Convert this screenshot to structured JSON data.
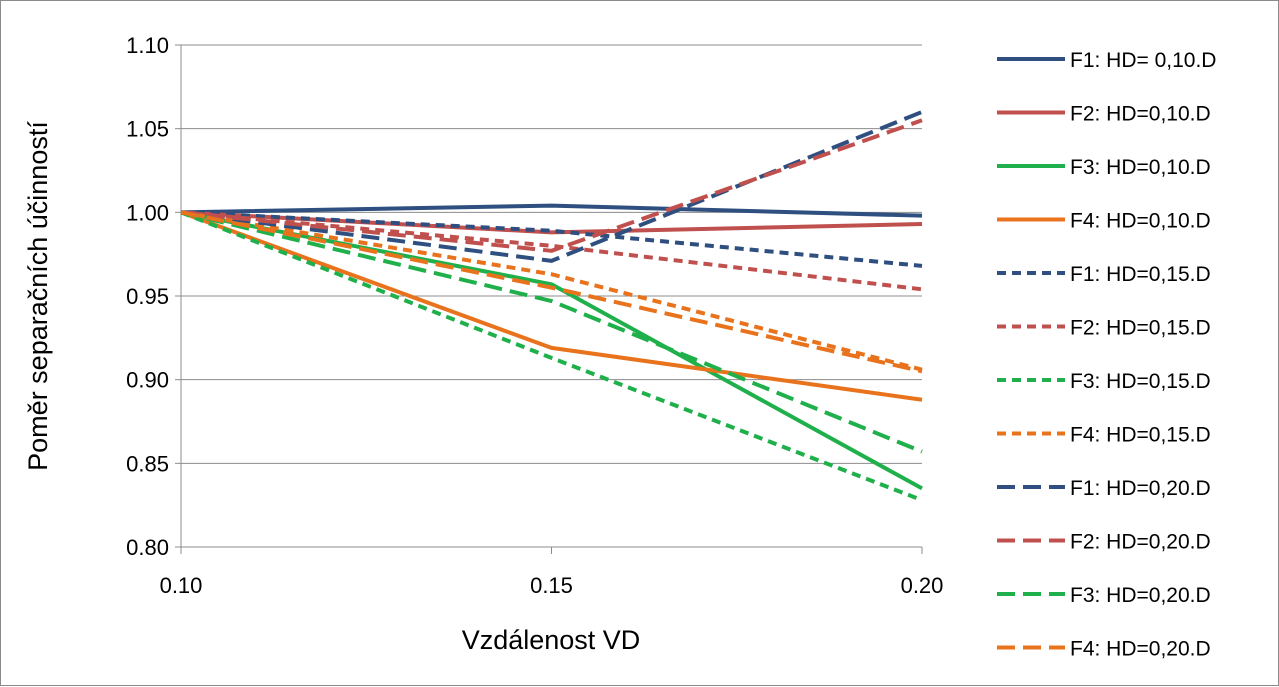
{
  "chart_data": {
    "type": "line",
    "title": "",
    "xlabel": "Vzdálenost VD",
    "ylabel": "Poměr separačních účinností",
    "x": [
      0.1,
      0.15,
      0.2
    ],
    "x_tick_labels": [
      "0.10",
      "0.15",
      "0.20"
    ],
    "ylim": [
      0.8,
      1.1
    ],
    "y_ticks": [
      0.8,
      0.85,
      0.9,
      0.95,
      1.0,
      1.05,
      1.1
    ],
    "y_tick_labels": [
      "0.80",
      "0.85",
      "0.90",
      "0.95",
      "1.00",
      "1.05",
      "1.10"
    ],
    "grid": "horizontal",
    "legend_position": "right",
    "series": [
      {
        "name": "F1: HD= 0,10.D",
        "values": [
          1.0,
          1.004,
          0.998
        ],
        "color": "#2e4f7f",
        "style": "solid"
      },
      {
        "name": "F2: HD=0,10.D",
        "values": [
          1.0,
          0.988,
          0.993
        ],
        "color": "#c0504d",
        "style": "solid"
      },
      {
        "name": "F3: HD=0,10.D",
        "values": [
          1.0,
          0.957,
          0.835
        ],
        "color": "#1fb04b",
        "style": "solid"
      },
      {
        "name": "F4: HD=0,10.D",
        "values": [
          1.0,
          0.919,
          0.888
        ],
        "color": "#e8731c",
        "style": "solid"
      },
      {
        "name": "F1: HD=0,15.D",
        "values": [
          1.0,
          0.989,
          0.968
        ],
        "color": "#2e4f7f",
        "style": "short-dash"
      },
      {
        "name": "F2: HD=0,15.D",
        "values": [
          1.0,
          0.98,
          0.954
        ],
        "color": "#c0504d",
        "style": "short-dash"
      },
      {
        "name": "F3: HD=0,15.D",
        "values": [
          1.0,
          0.913,
          0.828
        ],
        "color": "#1fb04b",
        "style": "short-dash"
      },
      {
        "name": "F4: HD=0,15.D",
        "values": [
          1.0,
          0.963,
          0.906
        ],
        "color": "#e8731c",
        "style": "short-dash"
      },
      {
        "name": "F1: HD=0,20.D",
        "values": [
          1.0,
          0.971,
          1.06
        ],
        "color": "#2e4f7f",
        "style": "long-dash"
      },
      {
        "name": "F2: HD=0,20.D",
        "values": [
          1.0,
          0.977,
          1.055
        ],
        "color": "#c0504d",
        "style": "long-dash"
      },
      {
        "name": "F3: HD=0,20.D",
        "values": [
          1.0,
          0.947,
          0.857
        ],
        "color": "#1fb04b",
        "style": "long-dash"
      },
      {
        "name": "F4: HD=0,20.D",
        "values": [
          1.0,
          0.955,
          0.905
        ],
        "color": "#e8731c",
        "style": "long-dash"
      }
    ]
  }
}
